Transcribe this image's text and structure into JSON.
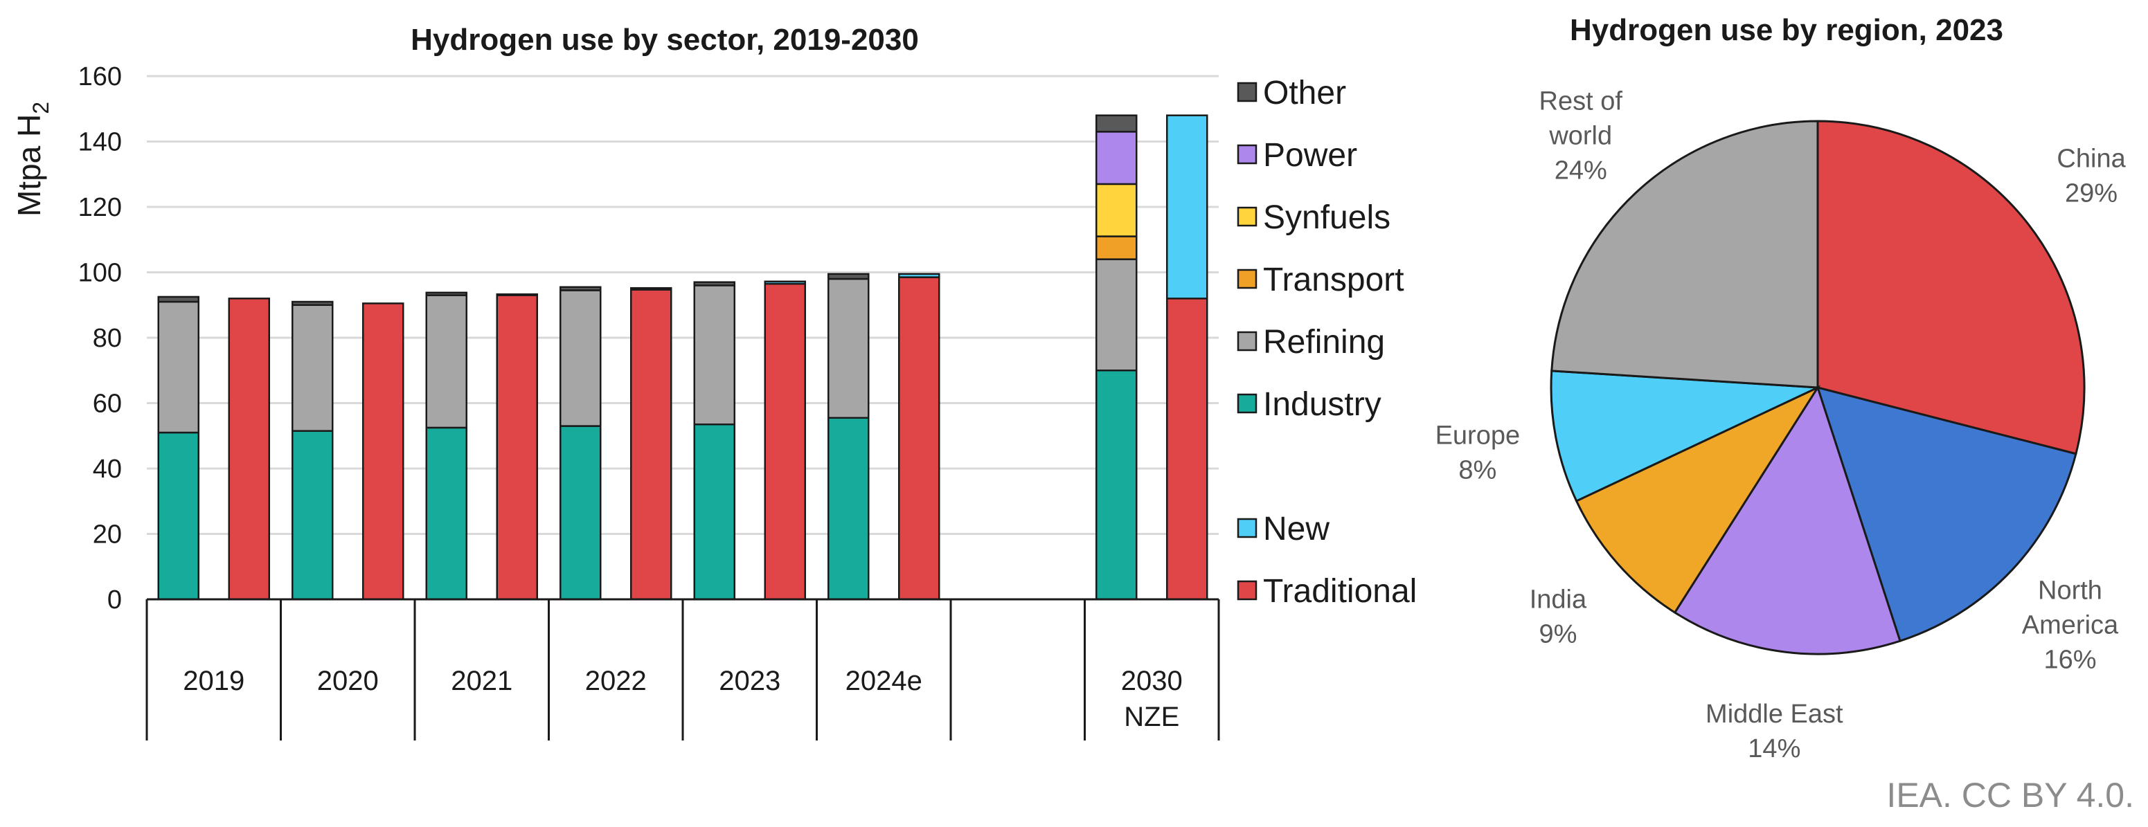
{
  "chart_data": [
    {
      "type": "bar",
      "stacked": true,
      "title": "Hydrogen use by sector, 2019-2030",
      "ylabel": "Mtpa H",
      "ylabel_subscript": "2",
      "ylim": [
        0,
        160
      ],
      "yticks": [
        0,
        20,
        40,
        60,
        80,
        100,
        120,
        140,
        160
      ],
      "grid": true,
      "categories": [
        {
          "label": "2019",
          "bars": [
            {
              "kind": "sector",
              "segments": {
                "Industry": 51,
                "Refining": 40,
                "Transport": 0,
                "Synfuels": 0,
                "Power": 0,
                "Other": 1.5
              }
            },
            {
              "kind": "type",
              "segments": {
                "Traditional": 92,
                "New": 0
              }
            }
          ]
        },
        {
          "label": "2020",
          "bars": [
            {
              "kind": "sector",
              "segments": {
                "Industry": 51.5,
                "Refining": 38.5,
                "Transport": 0,
                "Synfuels": 0,
                "Power": 0,
                "Other": 1
              }
            },
            {
              "kind": "type",
              "segments": {
                "Traditional": 90.5,
                "New": 0
              }
            }
          ]
        },
        {
          "label": "2021",
          "bars": [
            {
              "kind": "sector",
              "segments": {
                "Industry": 52.5,
                "Refining": 40.5,
                "Transport": 0,
                "Synfuels": 0,
                "Power": 0,
                "Other": 0.8
              }
            },
            {
              "kind": "type",
              "segments": {
                "Traditional": 93,
                "New": 0.3
              }
            }
          ]
        },
        {
          "label": "2022",
          "bars": [
            {
              "kind": "sector",
              "segments": {
                "Industry": 53,
                "Refining": 41.5,
                "Transport": 0,
                "Synfuels": 0,
                "Power": 0,
                "Other": 1
              }
            },
            {
              "kind": "type",
              "segments": {
                "Traditional": 94.7,
                "New": 0.5
              }
            }
          ]
        },
        {
          "label": "2023",
          "bars": [
            {
              "kind": "sector",
              "segments": {
                "Industry": 53.5,
                "Refining": 42.5,
                "Transport": 0,
                "Synfuels": 0,
                "Power": 0,
                "Other": 1
              }
            },
            {
              "kind": "type",
              "segments": {
                "Traditional": 96.5,
                "New": 0.7
              }
            }
          ]
        },
        {
          "label": "2024e",
          "bars": [
            {
              "kind": "sector",
              "segments": {
                "Industry": 55.5,
                "Refining": 42.5,
                "Transport": 0,
                "Synfuels": 0,
                "Power": 0,
                "Other": 1.5
              }
            },
            {
              "kind": "type",
              "segments": {
                "Traditional": 98.5,
                "New": 1
              }
            }
          ]
        },
        {
          "label": "",
          "bars": []
        },
        {
          "label": "2030\nNZE",
          "bars": [
            {
              "kind": "sector",
              "segments": {
                "Industry": 70,
                "Refining": 34,
                "Transport": 7,
                "Synfuels": 16,
                "Power": 16,
                "Other": 5
              }
            },
            {
              "kind": "type",
              "segments": {
                "Traditional": 92,
                "New": 56
              }
            }
          ]
        }
      ],
      "series": [
        {
          "name": "Industry",
          "color": "#17ab9b"
        },
        {
          "name": "Refining",
          "color": "#a6a6a6"
        },
        {
          "name": "Transport",
          "color": "#f0a026"
        },
        {
          "name": "Synfuels",
          "color": "#ffd43c"
        },
        {
          "name": "Power",
          "color": "#ae87ec"
        },
        {
          "name": "Other",
          "color": "#595959"
        },
        {
          "name": "Traditional",
          "color": "#e04648"
        },
        {
          "name": "New",
          "color": "#4fcff8"
        }
      ],
      "legend_order": [
        "Other",
        "Power",
        "Synfuels",
        "Transport",
        "Refining",
        "Industry",
        "",
        "New",
        "Traditional"
      ],
      "legend_position": "right"
    },
    {
      "type": "pie",
      "title": "Hydrogen use by region, 2023",
      "start": "top, clockwise",
      "slices": [
        {
          "label": "China",
          "value": 29,
          "text": "29%",
          "color": "#e04648"
        },
        {
          "label": "North\nAmerica",
          "value": 16,
          "text": "16%",
          "color": "#3e78d0"
        },
        {
          "label": "Middle East",
          "value": 14,
          "text": "14%",
          "color": "#ae87ec"
        },
        {
          "label": "India",
          "value": 9,
          "text": "9%",
          "color": "#f0a626"
        },
        {
          "label": "Europe",
          "value": 8,
          "text": "8%",
          "color": "#4fcff8"
        },
        {
          "label": "Rest of\nworld",
          "value": 24,
          "text": "24%",
          "color": "#a6a6a6"
        }
      ]
    }
  ],
  "credit": "IEA. CC BY 4.0."
}
